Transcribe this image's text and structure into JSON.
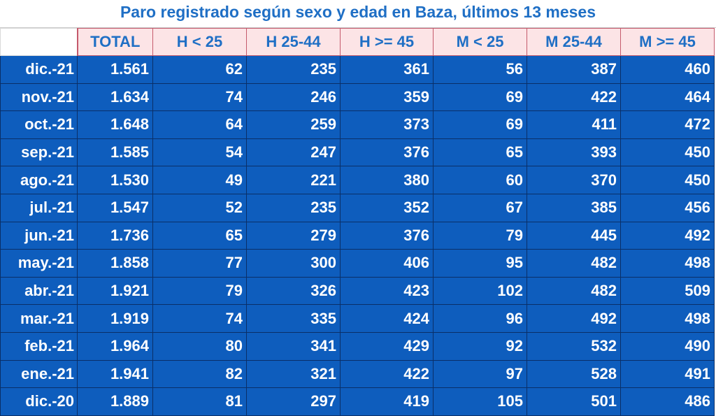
{
  "chart_data": {
    "type": "table",
    "title": "Paro registrado según sexo y edad en Baza, últimos 13 meses",
    "columns": [
      "TOTAL",
      "H < 25",
      "H 25-44",
      "H >= 45",
      "M < 25",
      "M 25-44",
      "M >= 45"
    ],
    "rows": [
      {
        "month": "dic.-21",
        "values": [
          "1.561",
          "62",
          "235",
          "361",
          "56",
          "387",
          "460"
        ]
      },
      {
        "month": "nov.-21",
        "values": [
          "1.634",
          "74",
          "246",
          "359",
          "69",
          "422",
          "464"
        ]
      },
      {
        "month": "oct.-21",
        "values": [
          "1.648",
          "64",
          "259",
          "373",
          "69",
          "411",
          "472"
        ]
      },
      {
        "month": "sep.-21",
        "values": [
          "1.585",
          "54",
          "247",
          "376",
          "65",
          "393",
          "450"
        ]
      },
      {
        "month": "ago.-21",
        "values": [
          "1.530",
          "49",
          "221",
          "380",
          "60",
          "370",
          "450"
        ]
      },
      {
        "month": "jul.-21",
        "values": [
          "1.547",
          "52",
          "235",
          "352",
          "67",
          "385",
          "456"
        ]
      },
      {
        "month": "jun.-21",
        "values": [
          "1.736",
          "65",
          "279",
          "376",
          "79",
          "445",
          "492"
        ]
      },
      {
        "month": "may.-21",
        "values": [
          "1.858",
          "77",
          "300",
          "406",
          "95",
          "482",
          "498"
        ]
      },
      {
        "month": "abr.-21",
        "values": [
          "1.921",
          "79",
          "326",
          "423",
          "102",
          "482",
          "509"
        ]
      },
      {
        "month": "mar.-21",
        "values": [
          "1.919",
          "74",
          "335",
          "424",
          "96",
          "492",
          "498"
        ]
      },
      {
        "month": "feb.-21",
        "values": [
          "1.964",
          "80",
          "341",
          "429",
          "92",
          "532",
          "490"
        ]
      },
      {
        "month": "ene.-21",
        "values": [
          "1.941",
          "82",
          "321",
          "422",
          "97",
          "528",
          "491"
        ]
      },
      {
        "month": "dic.-20",
        "values": [
          "1.889",
          "81",
          "297",
          "419",
          "105",
          "501",
          "486"
        ]
      }
    ]
  },
  "colors": {
    "title_text": "#1f6fc5",
    "header_fill": "#fce4e6",
    "header_border": "#c55a6c",
    "cell_fill": "#0e5dbd",
    "cell_text": "#ffffff"
  }
}
